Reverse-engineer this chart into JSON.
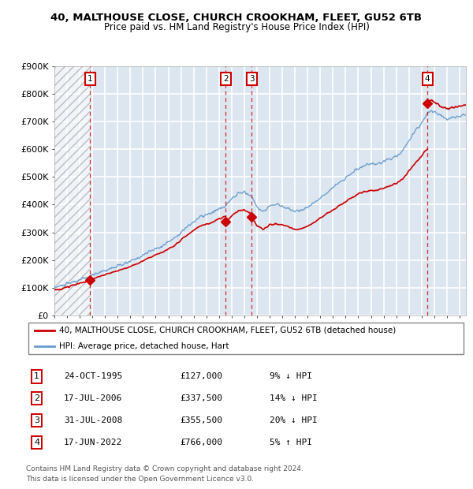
{
  "title1": "40, MALTHOUSE CLOSE, CHURCH CROOKHAM, FLEET, GU52 6TB",
  "title2": "Price paid vs. HM Land Registry's House Price Index (HPI)",
  "ylabel_ticks": [
    "£0",
    "£100K",
    "£200K",
    "£300K",
    "£400K",
    "£500K",
    "£600K",
    "£700K",
    "£800K",
    "£900K"
  ],
  "ytick_values": [
    0,
    100000,
    200000,
    300000,
    400000,
    500000,
    600000,
    700000,
    800000,
    900000
  ],
  "xmin": 1993.0,
  "xmax": 2025.5,
  "ymin": 0,
  "ymax": 900000,
  "transactions": [
    {
      "num": 1,
      "date": "24-OCT-1995",
      "x": 1995.81,
      "price": 127000,
      "pct": "9%",
      "dir": "↓"
    },
    {
      "num": 2,
      "date": "17-JUL-2006",
      "x": 2006.54,
      "price": 337500,
      "pct": "14%",
      "dir": "↓"
    },
    {
      "num": 3,
      "date": "31-JUL-2008",
      "x": 2008.58,
      "price": 355500,
      "pct": "20%",
      "dir": "↓"
    },
    {
      "num": 4,
      "date": "17-JUN-2022",
      "x": 2022.46,
      "price": 766000,
      "pct": "5%",
      "dir": "↑"
    }
  ],
  "legend_line1": "40, MALTHOUSE CLOSE, CHURCH CROOKHAM, FLEET, GU52 6TB (detached house)",
  "legend_line2": "HPI: Average price, detached house, Hart",
  "footer1": "Contains HM Land Registry data © Crown copyright and database right 2024.",
  "footer2": "This data is licensed under the Open Government Licence v3.0.",
  "red_color": "#cc0000",
  "blue_color": "#6699cc",
  "background_color": "#dce6f0",
  "table_rows": [
    [
      1,
      "24-OCT-1995",
      "£127,000",
      "9% ↓ HPI"
    ],
    [
      2,
      "17-JUL-2006",
      "£337,500",
      "14% ↓ HPI"
    ],
    [
      3,
      "31-JUL-2008",
      "£355,500",
      "20% ↓ HPI"
    ],
    [
      4,
      "17-JUN-2022",
      "£766,000",
      "5% ↑ HPI"
    ]
  ]
}
